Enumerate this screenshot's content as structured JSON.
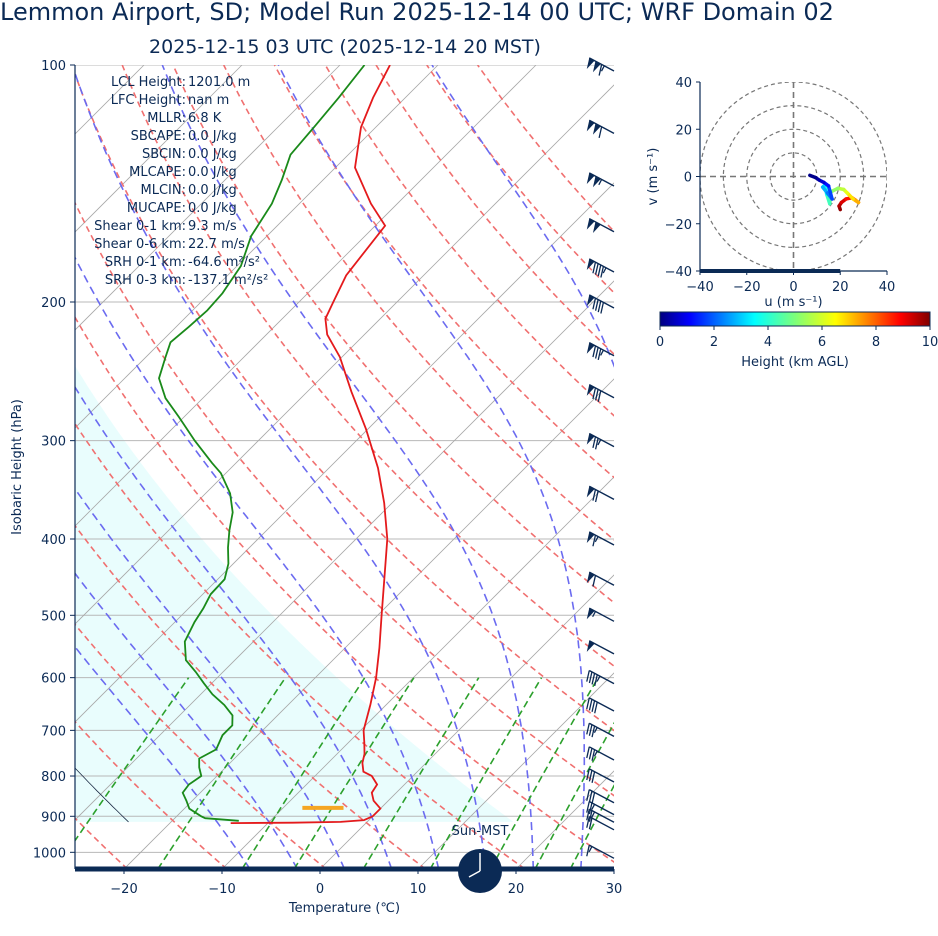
{
  "title": "Lemmon Airport, SD; Model Run 2025-12-14 00 UTC; WRF Domain 02",
  "subtitle": "2025-12-15 03 UTC  (2025-12-14 20 MST)",
  "colors": {
    "text": "#0b2a55",
    "temperature": "#e41a1c",
    "dewpoint": "#1a8a1a",
    "dry_adiabat": "#f07070",
    "moist_adiabat": "#6b6bf0",
    "mixing_ratio": "#2ca02c",
    "cape_shade": "#e9fdfd",
    "lcl_marker": "#f5a623"
  },
  "chart_data": [
    {
      "type": "line",
      "kind": "skew-t log-p sounding",
      "xlabel": "Temperature (℃)",
      "ylabel": "Isobaric Height (hPa)",
      "xlim": [
        -25,
        30
      ],
      "ylim": [
        1050,
        100
      ],
      "y_scale": "log",
      "x_ticks": [
        -20,
        -10,
        0,
        10,
        20,
        30
      ],
      "y_ticks": [
        100,
        200,
        300,
        400,
        500,
        600,
        700,
        800,
        900,
        1000
      ],
      "grid": true,
      "stats": [
        "LCL Height: 1201.0 m",
        "LFC Height: nan m",
        "MLLR: 6.8 K",
        "SBCAPE: 0.0 J/kg",
        "SBCIN: 0.0 J/kg",
        "MLCAPE: 0.0 J/kg",
        "MLCIN: 0.0 J/kg",
        "MUCAPE: 0.0 J/kg",
        "Shear 0-1 km: 9.3 m/s",
        "Shear 0-6 km: 22.7 m/s",
        "SRH 0-1 km: -64.6 m²/s²",
        "SRH 0-3 km: -137.1 m²/s²"
      ],
      "clock_label": "Sun-MST",
      "series": [
        {
          "role": "temperature",
          "points": [
            [
              -13.8,
              918
            ],
            [
              -7.5,
              917
            ],
            [
              -2.7,
              915
            ],
            [
              -0.5,
              910
            ],
            [
              0.0,
              900
            ],
            [
              0.0,
              880
            ],
            [
              -1.5,
              860
            ],
            [
              -2.5,
              840
            ],
            [
              -2.8,
              820
            ],
            [
              -4.2,
              800
            ],
            [
              -5.5,
              790
            ],
            [
              -6.5,
              770
            ],
            [
              -7.2,
              750
            ],
            [
              -8.4,
              725
            ],
            [
              -9.7,
              700
            ],
            [
              -11.6,
              650
            ],
            [
              -13.8,
              600
            ],
            [
              -16.5,
              550
            ],
            [
              -19.6,
              500
            ],
            [
              -23.0,
              450
            ],
            [
              -26.8,
              400
            ],
            [
              -30.8,
              360
            ],
            [
              -35.0,
              325
            ],
            [
              -40.2,
              290
            ],
            [
              -45.5,
              260
            ],
            [
              -50.2,
              235
            ],
            [
              -53.8,
              220
            ],
            [
              -55.6,
              210
            ],
            [
              -56.5,
              200
            ],
            [
              -57.9,
              185
            ],
            [
              -59.0,
              160
            ],
            [
              -62.7,
              150
            ],
            [
              -68.0,
              135
            ],
            [
              -71.5,
              120
            ],
            [
              -73.3,
              110
            ],
            [
              -74.9,
              100
            ]
          ]
        },
        {
          "role": "dewpoint",
          "points": [
            [
              -13.2,
              912
            ],
            [
              -16.9,
              905
            ],
            [
              -17.5,
              900
            ],
            [
              -19.5,
              880
            ],
            [
              -20.6,
              860
            ],
            [
              -21.8,
              840
            ],
            [
              -22.0,
              820
            ],
            [
              -21.6,
              800
            ],
            [
              -22.7,
              780
            ],
            [
              -23.6,
              760
            ],
            [
              -22.8,
              740
            ],
            [
              -23.6,
              710
            ],
            [
              -23.6,
              690
            ],
            [
              -24.6,
              670
            ],
            [
              -26.5,
              650
            ],
            [
              -28.8,
              630
            ],
            [
              -30.8,
              610
            ],
            [
              -32.8,
              590
            ],
            [
              -35.0,
              570
            ],
            [
              -37.0,
              540
            ],
            [
              -38.0,
              510
            ],
            [
              -38.5,
              490
            ],
            [
              -39.2,
              470
            ],
            [
              -39.3,
              450
            ],
            [
              -40.5,
              430
            ],
            [
              -42.2,
              410
            ],
            [
              -43.8,
              390
            ],
            [
              -45.3,
              370
            ],
            [
              -47.5,
              350
            ],
            [
              -50.5,
              330
            ],
            [
              -52.5,
              320
            ],
            [
              -56.5,
              300
            ],
            [
              -60.5,
              280
            ],
            [
              -63.8,
              265
            ],
            [
              -66.5,
              250
            ],
            [
              -68.0,
              235
            ],
            [
              -69.0,
              225
            ],
            [
              -68.7,
              215
            ],
            [
              -68.5,
              205
            ],
            [
              -68.7,
              195
            ],
            [
              -69.6,
              180
            ],
            [
              -71.6,
              165
            ],
            [
              -72.8,
              150
            ],
            [
              -74.2,
              140
            ],
            [
              -75.9,
              130
            ],
            [
              -76.3,
              120
            ],
            [
              -76.8,
              110
            ],
            [
              -77.5,
              100
            ]
          ]
        },
        {
          "role": "lcl",
          "pressure": 878,
          "x_range": [
            -1.8,
            2.4
          ]
        }
      ]
    },
    {
      "type": "line",
      "kind": "hodograph",
      "xlabel": "u (m s⁻¹)",
      "ylabel": "v (m s⁻¹)",
      "xlim": [
        -40,
        40
      ],
      "ylim": [
        -40,
        40
      ],
      "x_ticks": [
        -40,
        -20,
        0,
        20,
        40
      ],
      "y_ticks": [
        -40,
        -20,
        0,
        20,
        40
      ],
      "ring_speeds": [
        10,
        20,
        30,
        40
      ],
      "points_u_v_heightkm": [
        [
          20.0,
          -14.0,
          0.05
        ],
        [
          19.5,
          -12.5,
          0.3
        ],
        [
          20.5,
          -11.0,
          0.6
        ],
        [
          22.5,
          -9.5,
          1.0
        ],
        [
          25.0,
          -9.0,
          1.5
        ],
        [
          26.5,
          -10.0,
          2.0
        ],
        [
          27.8,
          -11.0,
          2.5
        ],
        [
          25.5,
          -9.5,
          3.0
        ],
        [
          23.0,
          -7.0,
          3.5
        ],
        [
          21.5,
          -5.5,
          4.0
        ],
        [
          19.0,
          -5.0,
          4.5
        ],
        [
          16.0,
          -6.5,
          5.0
        ],
        [
          15.5,
          -11.5,
          5.5
        ],
        [
          14.2,
          -7.5,
          6.0
        ],
        [
          13.5,
          -3.5,
          6.5
        ],
        [
          12.5,
          -4.5,
          7.0
        ],
        [
          14.5,
          -7.0,
          7.5
        ],
        [
          16.5,
          -9.5,
          8.0
        ],
        [
          15.0,
          -4.0,
          8.5
        ],
        [
          13.0,
          -2.5,
          9.0
        ],
        [
          11.0,
          -1.5,
          9.5
        ],
        [
          9.5,
          -0.5,
          9.8
        ],
        [
          7.0,
          0.5,
          10.0
        ]
      ]
    },
    {
      "type": "heatmap",
      "kind": "colorbar",
      "label": "Height (km AGL)",
      "range": [
        0,
        10
      ],
      "ticks": [
        0,
        2,
        4,
        6,
        8,
        10
      ],
      "colormap": "jet"
    }
  ]
}
